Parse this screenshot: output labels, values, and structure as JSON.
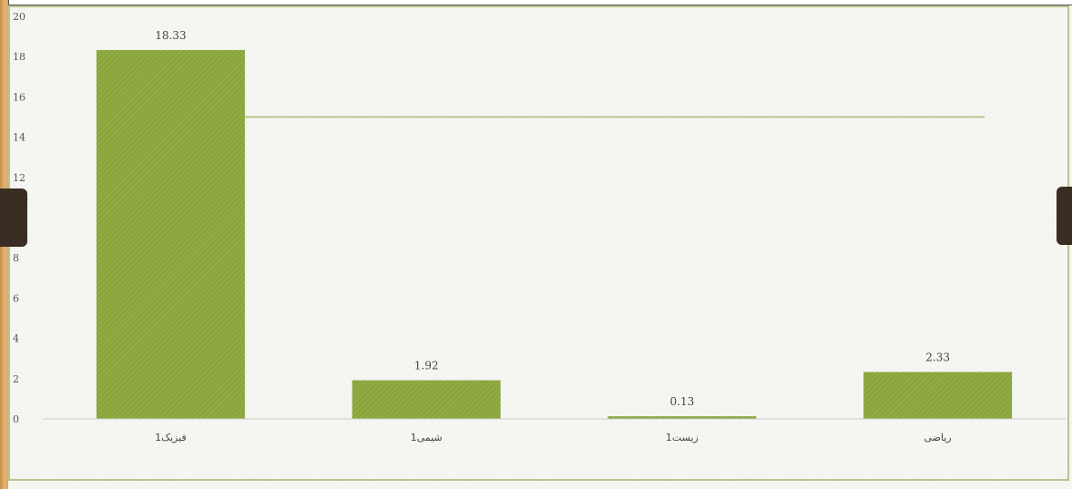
{
  "chart_data": {
    "type": "bar",
    "categories": [
      "فیزیک1",
      "شیمی1",
      "زیست1",
      "ریاضی"
    ],
    "values": [
      18.33,
      1.92,
      0.13,
      2.33
    ],
    "data_labels": [
      "18.33",
      "1.92",
      "0.13",
      "2.33"
    ],
    "reference_line": 15,
    "ylim": [
      0,
      20
    ],
    "yticks": [
      "0",
      "2",
      "4",
      "6",
      "8",
      "10",
      "12",
      "14",
      "16",
      "18",
      "20"
    ],
    "title": "",
    "xlabel": "",
    "ylabel": "",
    "grid": false,
    "legend": "none"
  },
  "colors": {
    "bar": "#8aa53a",
    "line": "#b7c58a",
    "axis": "#c9c9c9",
    "frame": "#b5c58e"
  }
}
